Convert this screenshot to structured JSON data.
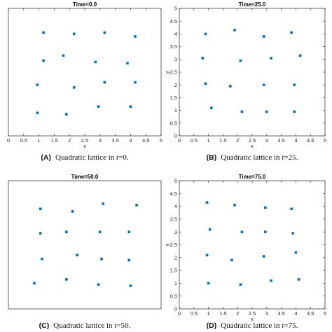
{
  "chart_data": [
    {
      "type": "scatter",
      "title": "Time=0.0",
      "xlabel": "x",
      "ylabel": "",
      "xlim": [
        0,
        5
      ],
      "ylim": [
        0,
        5
      ],
      "xticks": [
        "0",
        "0.5",
        "1",
        "1.5",
        "2",
        "2.5",
        "3",
        "3.5",
        "4",
        "4.5",
        "5"
      ],
      "yticks": [],
      "grid": false,
      "caption": {
        "letter": "(A)",
        "text": "Quadratic lattice in ",
        "var": "t",
        "eq": "=0."
      },
      "series": [
        {
          "x": [
            1.15,
            2.15,
            3.15,
            4.15,
            1.15,
            1.8,
            2.85,
            3.9,
            0.95,
            2.15,
            3.15,
            4.15,
            0.95,
            1.9,
            2.95,
            4.0
          ],
          "y": [
            4.05,
            4.0,
            4.05,
            3.9,
            2.95,
            3.15,
            2.9,
            2.85,
            2.0,
            1.9,
            2.1,
            2.1,
            0.9,
            0.85,
            1.15,
            1.15
          ]
        }
      ]
    },
    {
      "type": "scatter",
      "title": "Time=25.0",
      "xlabel": "x",
      "ylabel": "y",
      "xlim": [
        0,
        5
      ],
      "ylim": [
        0,
        5
      ],
      "xticks": [
        "0",
        "0.5",
        "1",
        "1.5",
        "2",
        "2.5",
        "3",
        "3.5",
        "4",
        "4.5",
        "5"
      ],
      "yticks": [
        "0",
        "0.5",
        "1",
        "1.5",
        "2",
        "2.5",
        "3",
        "3.5",
        "4",
        "4.5",
        "5"
      ],
      "grid": false,
      "caption": {
        "letter": "(B)",
        "text": "Quadratic lattice in ",
        "var": "t",
        "eq": "=25."
      },
      "series": [
        {
          "x": [
            0.9,
            1.9,
            2.9,
            3.85,
            0.8,
            2.1,
            3.15,
            4.15,
            0.9,
            1.75,
            2.9,
            3.95,
            1.1,
            2.15,
            3.0,
            3.95
          ],
          "y": [
            4.0,
            4.15,
            3.9,
            4.05,
            3.05,
            2.95,
            3.05,
            3.15,
            2.05,
            1.95,
            2.0,
            2.0,
            1.1,
            0.95,
            0.95,
            0.95
          ]
        }
      ]
    },
    {
      "type": "scatter",
      "title": "Time=50.0",
      "xlabel": "",
      "ylabel": "",
      "xlim": [
        0,
        5
      ],
      "ylim": [
        0,
        5
      ],
      "xticks": [],
      "yticks": [],
      "grid": false,
      "caption": {
        "letter": "(C)",
        "text": "Quadratic lattice in ",
        "var": "t",
        "eq": "=50."
      },
      "series": [
        {
          "x": [
            1.05,
            2.1,
            3.1,
            4.2,
            1.05,
            1.9,
            3.0,
            3.95,
            1.1,
            2.25,
            3.05,
            3.95,
            0.85,
            1.9,
            2.95,
            4.0
          ],
          "y": [
            3.9,
            3.8,
            4.1,
            4.05,
            2.95,
            3.0,
            3.0,
            3.0,
            1.95,
            2.1,
            1.95,
            1.9,
            1.0,
            1.15,
            0.95,
            0.9
          ]
        }
      ]
    },
    {
      "type": "scatter",
      "title": "Time=75.0",
      "xlabel": "x",
      "ylabel": "y",
      "xlim": [
        0,
        5
      ],
      "ylim": [
        0,
        5
      ],
      "xticks": [
        "0",
        "0.5",
        "1",
        "1.5",
        "2",
        "2.5",
        "3",
        "3.5",
        "4",
        "4.5",
        "5"
      ],
      "yticks": [
        "0",
        "0.5",
        "1",
        "1.5",
        "2",
        "2.5",
        "3",
        "3.5",
        "4",
        "4.5",
        "5"
      ],
      "grid": false,
      "caption": {
        "letter": "(D)",
        "text": "Quadratic lattice in ",
        "var": "t",
        "eq": "=75."
      },
      "series": [
        {
          "x": [
            0.95,
            1.9,
            2.95,
            3.85,
            1.05,
            2.15,
            2.95,
            3.9,
            0.95,
            1.8,
            2.9,
            4.0,
            1.0,
            2.1,
            3.15,
            4.1
          ],
          "y": [
            4.15,
            4.05,
            3.95,
            3.9,
            3.1,
            3.0,
            3.0,
            2.95,
            2.1,
            1.9,
            2.05,
            2.2,
            1.0,
            0.95,
            1.1,
            1.15
          ]
        }
      ]
    }
  ]
}
